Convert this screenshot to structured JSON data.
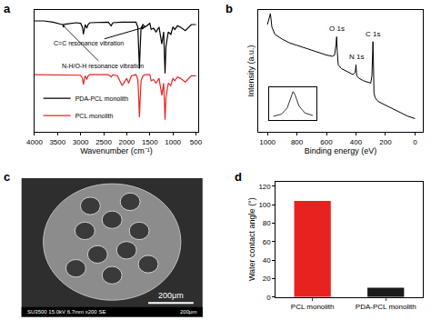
{
  "chart_data": [
    {
      "label": "a",
      "type": "line",
      "x_label": "Wavenumber (cm⁻¹)",
      "xlim": [
        4000,
        450
      ],
      "xticks": [
        4000,
        3500,
        3000,
        2500,
        2000,
        1500,
        1000,
        500
      ],
      "ylim": [
        0,
        100
      ],
      "tick_labels": "x",
      "legend": "lower left",
      "x": [
        4000,
        3800,
        3600,
        3500,
        3400,
        3300,
        3200,
        3100,
        3000,
        2960,
        2940,
        2920,
        2900,
        2865,
        2840,
        2800,
        2600,
        2400,
        2360,
        2340,
        2300,
        2200,
        2100,
        2000,
        1960,
        1900,
        1800,
        1760,
        1740,
        1725,
        1710,
        1690,
        1650,
        1600,
        1500,
        1470,
        1420,
        1365,
        1300,
        1290,
        1240,
        1200,
        1170,
        1150,
        1100,
        1045,
        1000,
        960,
        900,
        840,
        730,
        600,
        500
      ],
      "series": [
        {
          "name": "PDA-PCL monolith",
          "color": "#000000",
          "values": [
            91,
            91,
            90,
            89,
            88,
            88.5,
            89,
            89.5,
            89,
            86,
            80,
            85,
            88,
            85,
            88,
            89.5,
            90,
            90,
            88,
            87,
            89.5,
            90,
            90,
            90,
            90,
            90,
            90,
            86,
            70,
            52,
            68,
            85,
            88,
            86,
            89,
            84,
            85,
            82,
            86,
            84,
            72,
            82,
            48,
            70,
            82,
            80,
            86,
            84,
            87,
            86,
            83,
            88,
            88
          ]
        },
        {
          "name": "PCL monolith",
          "color": "#e8231f",
          "values": [
            47,
            47,
            47,
            47,
            47,
            47,
            47,
            47,
            46.5,
            44,
            39,
            43,
            46,
            43,
            46,
            47,
            47,
            47,
            46,
            45,
            47,
            46,
            38,
            44,
            40,
            46,
            47,
            43,
            28,
            12,
            26,
            42,
            46,
            47,
            47,
            42,
            43,
            40,
            44,
            42,
            30,
            40,
            10,
            28,
            40,
            38,
            44,
            42,
            45,
            44,
            41,
            46,
            46
          ]
        }
      ],
      "annotations": [
        {
          "text": "C=C resonance vibration",
          "x": 1600,
          "y": 86,
          "line_style": "solid"
        },
        {
          "text": "N-H/O-H resonance vibration",
          "x": 3400,
          "y": 88,
          "line_style": "dashed"
        }
      ]
    },
    {
      "label": "b",
      "type": "line",
      "x_label": "Binding energy (eV)",
      "y_label": "Intensity (a.u.)",
      "xlim": [
        1060,
        -50
      ],
      "xticks": [
        1000,
        800,
        600,
        400,
        200,
        0
      ],
      "ylim": [
        0,
        100
      ],
      "tick_labels": "x",
      "color": "#000000",
      "x": [
        1000,
        990,
        980,
        970,
        950,
        900,
        850,
        800,
        750,
        700,
        650,
        600,
        560,
        545,
        535,
        531,
        527,
        520,
        500,
        450,
        420,
        405,
        400,
        395,
        380,
        350,
        300,
        292,
        288,
        285,
        282,
        278,
        270,
        250,
        200,
        150,
        100,
        50,
        0
      ],
      "values": [
        88,
        92,
        97,
        86,
        80,
        76,
        73,
        71,
        69,
        67,
        65,
        63,
        62,
        63,
        72,
        78,
        66,
        55,
        52,
        49,
        47,
        49,
        55,
        46,
        44,
        42,
        40,
        46,
        62,
        74,
        58,
        32,
        28,
        25,
        22,
        19,
        16,
        13,
        11
      ],
      "peak_labels": [
        {
          "text": "O 1s",
          "x": 531,
          "y": 78
        },
        {
          "text": "N 1s",
          "x": 400,
          "y": 55
        },
        {
          "text": "C 1s",
          "x": 285,
          "y": 74
        }
      ],
      "inset": {
        "type": "line",
        "tick_labels": false,
        "color": "#000000",
        "xlim": [
          412,
          388
        ],
        "ylim": [
          10,
          90
        ],
        "x": [
          410,
          406,
          403,
          401,
          400,
          399,
          397,
          394,
          390
        ],
        "values": [
          20,
          25,
          40,
          70,
          80,
          72,
          45,
          28,
          22
        ]
      }
    },
    {
      "label": "c",
      "type": "image",
      "info_bar": "SU3500 15.0kV 6.7mm x200 SE",
      "info_scale": "200μm",
      "scale_bar": "200μm"
    },
    {
      "label": "d",
      "type": "bar",
      "y_label": "Water contact angle (°)",
      "categories": [
        "PCL monolith",
        "PDA-PCL monolith"
      ],
      "values": [
        104,
        10
      ],
      "colors": [
        "#e8231f",
        "#1a1a1a"
      ],
      "ylim": [
        0,
        125
      ],
      "yticks": [
        0,
        20,
        40,
        60,
        80,
        100,
        120
      ]
    }
  ]
}
